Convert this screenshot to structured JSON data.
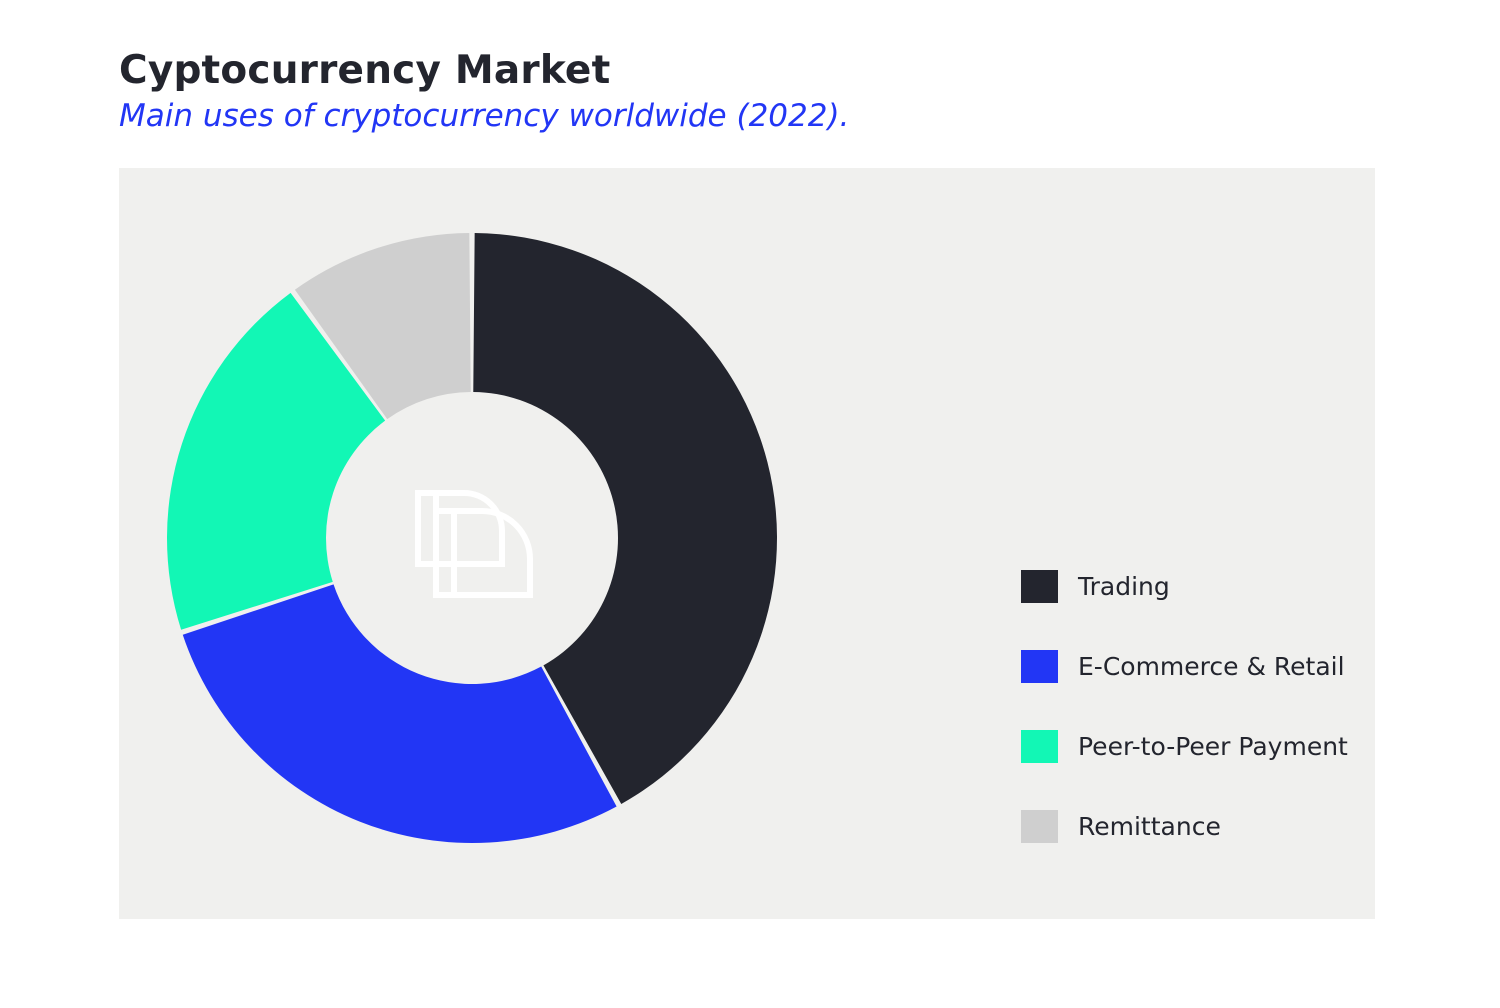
{
  "title": "Cyptocurrency Market",
  "subtitle": "Main uses of cryptocurrency worldwide (2022).",
  "chart_data": {
    "type": "pie",
    "style": "donut",
    "title": "Cyptocurrency Market",
    "subtitle": "Main uses of cryptocurrency worldwide (2022).",
    "unit": "%",
    "legend_position": "right",
    "categories": [
      "Trading",
      "E-Commerce & Retail",
      "Peer-to-Peer Payment",
      "Remittance"
    ],
    "values": [
      42,
      28,
      20,
      10
    ],
    "colors": [
      "#23252e",
      "#2236f5",
      "#12f7b5",
      "#cfcfcf"
    ],
    "center_icon": "logo-mark-icon"
  }
}
